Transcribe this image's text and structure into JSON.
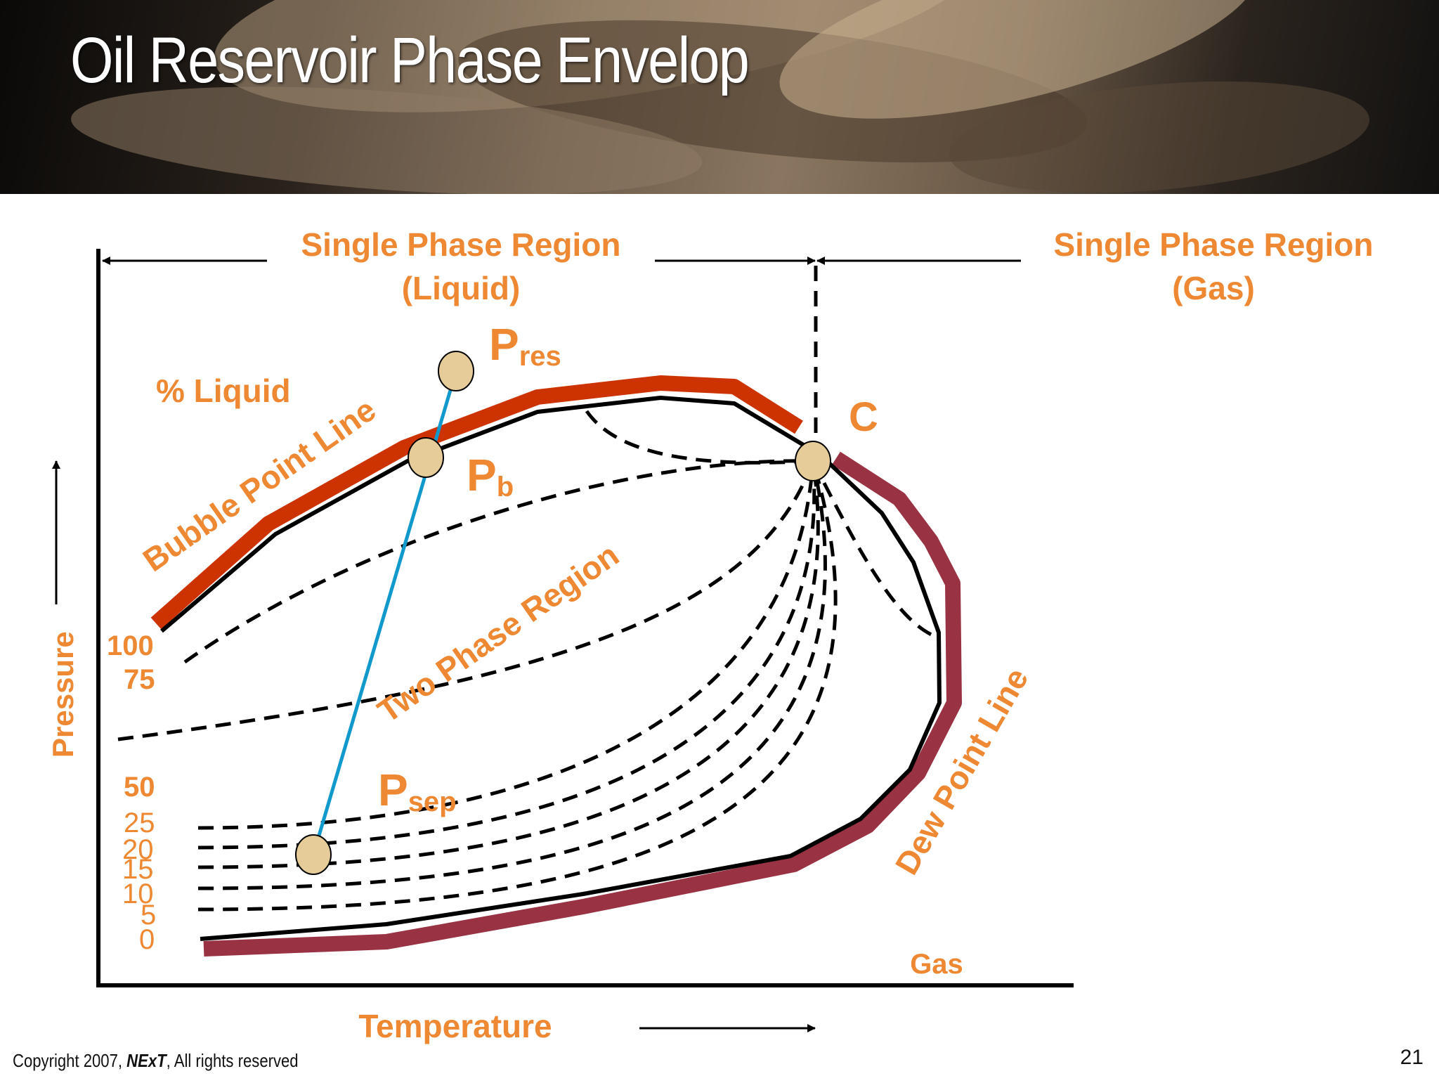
{
  "slide": {
    "title": "Oil Reservoir Phase Envelop",
    "copyright_prefix": "Copyright 2007, ",
    "brand": "NExT",
    "copyright_suffix": ", All rights reserved",
    "page_number": "21"
  },
  "diagram": {
    "axis_x_label": "Temperature",
    "axis_y_label": "Pressure",
    "region_liquid_line1": "Single Phase Region",
    "region_liquid_line2": "(Liquid)",
    "region_gas_line1": "Single Phase Region",
    "region_gas_line2": "(Gas)",
    "percent_liquid_label": "% Liquid",
    "bubble_point_label": "Bubble Point Line",
    "dew_point_label": "Dew Point Line",
    "two_phase_label": "Two Phase Region",
    "critical_point_label": "C",
    "gas_label": "Gas",
    "p_res_main": "P",
    "p_res_sub": "res",
    "p_b_main": "P",
    "p_b_sub": "b",
    "p_sep_main": "P",
    "p_sep_sub": "sep",
    "quality_labels": [
      "100",
      "75",
      "50",
      "25",
      "20",
      "15",
      "10",
      "5",
      "0"
    ]
  },
  "colors": {
    "label": "#ee8833",
    "bubble_point": "#cc3300",
    "dew_point": "#993344",
    "process_path": "#1199cc",
    "point_fill": "#e6cc99"
  }
}
